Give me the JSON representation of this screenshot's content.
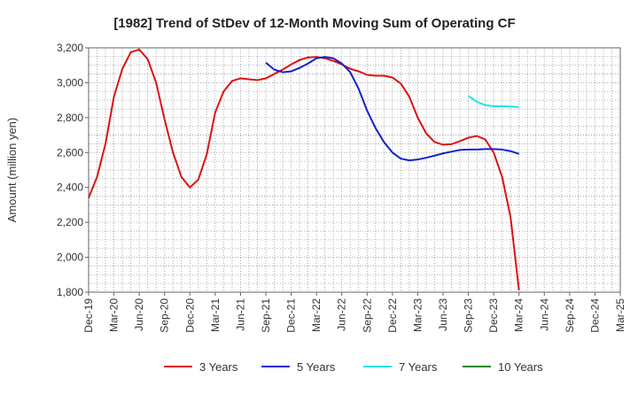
{
  "chart_data": {
    "type": "line",
    "title": "[1982]  Trend of StDev of 12-Month Moving Sum of Operating CF",
    "ylabel": "Amount (million yen)",
    "xlabel": "",
    "ylim": [
      1800,
      3200
    ],
    "yticks": [
      "1,800",
      "2,000",
      "2,200",
      "2,400",
      "2,600",
      "2,800",
      "3,000",
      "3,200"
    ],
    "ytick_values": [
      1800,
      2000,
      2200,
      2400,
      2600,
      2800,
      3000,
      3200
    ],
    "xticks": [
      "Dec-19",
      "Mar-20",
      "Jun-20",
      "Sep-20",
      "Dec-20",
      "Mar-21",
      "Jun-21",
      "Sep-21",
      "Dec-21",
      "Mar-22",
      "Jun-22",
      "Sep-22",
      "Dec-22",
      "Mar-23",
      "Jun-23",
      "Sep-23",
      "Dec-23",
      "Mar-24",
      "Jun-24",
      "Sep-24",
      "Dec-24",
      "Mar-25"
    ],
    "grid": true,
    "legend_position": "bottom",
    "series": [
      {
        "name": "3 Years",
        "color": "#dd1111",
        "x": [
          "Dec-19",
          "Jan-20",
          "Feb-20",
          "Mar-20",
          "Apr-20",
          "May-20",
          "Jun-20",
          "Jul-20",
          "Aug-20",
          "Sep-20",
          "Oct-20",
          "Nov-20",
          "Dec-20",
          "Jan-21",
          "Feb-21",
          "Mar-21",
          "Apr-21",
          "May-21",
          "Jun-21",
          "Jul-21",
          "Aug-21",
          "Sep-21",
          "Oct-21",
          "Nov-21",
          "Dec-21",
          "Jan-22",
          "Feb-22",
          "Mar-22",
          "Apr-22",
          "May-22",
          "Jun-22",
          "Jul-22",
          "Aug-22",
          "Sep-22",
          "Oct-22",
          "Nov-22",
          "Dec-22",
          "Jan-23",
          "Feb-23",
          "Mar-23",
          "Apr-23",
          "May-23",
          "Jun-23",
          "Jul-23",
          "Aug-23",
          "Sep-23",
          "Oct-23",
          "Nov-23",
          "Dec-23",
          "Jan-24",
          "Feb-24",
          "Mar-24"
        ],
        "values": [
          2340,
          2460,
          2650,
          2920,
          3080,
          3175,
          3190,
          3135,
          3000,
          2790,
          2600,
          2460,
          2400,
          2445,
          2590,
          2830,
          2950,
          3010,
          3025,
          3020,
          3015,
          3025,
          3050,
          3075,
          3105,
          3130,
          3145,
          3148,
          3140,
          3125,
          3105,
          3080,
          3065,
          3045,
          3040,
          3040,
          3030,
          2995,
          2920,
          2800,
          2710,
          2660,
          2645,
          2648,
          2665,
          2685,
          2695,
          2675,
          2600,
          2460,
          2230,
          1810
        ]
      },
      {
        "name": "5 Years",
        "color": "#1122cc",
        "x": [
          "Sep-21",
          "Oct-21",
          "Nov-21",
          "Dec-21",
          "Jan-22",
          "Feb-22",
          "Mar-22",
          "Apr-22",
          "May-22",
          "Jun-22",
          "Jul-22",
          "Aug-22",
          "Sep-22",
          "Oct-22",
          "Nov-22",
          "Dec-22",
          "Jan-23",
          "Feb-23",
          "Mar-23",
          "Apr-23",
          "May-23",
          "Jun-23",
          "Jul-23",
          "Aug-23",
          "Sep-23",
          "Oct-23",
          "Nov-23",
          "Dec-23",
          "Jan-24",
          "Feb-24",
          "Mar-24"
        ],
        "values": [
          3115,
          3075,
          3060,
          3065,
          3085,
          3110,
          3140,
          3148,
          3140,
          3110,
          3060,
          2965,
          2840,
          2740,
          2660,
          2600,
          2565,
          2555,
          2560,
          2570,
          2582,
          2595,
          2605,
          2615,
          2617,
          2617,
          2620,
          2620,
          2617,
          2608,
          2592
        ]
      },
      {
        "name": "7 Years",
        "color": "#22e5e5",
        "x": [
          "Sep-23",
          "Oct-23",
          "Nov-23",
          "Dec-23",
          "Jan-24",
          "Feb-24",
          "Mar-24"
        ],
        "values": [
          2925,
          2890,
          2872,
          2865,
          2865,
          2864,
          2860
        ]
      },
      {
        "name": "10 Years",
        "color": "#228822",
        "x": [],
        "values": []
      }
    ]
  }
}
